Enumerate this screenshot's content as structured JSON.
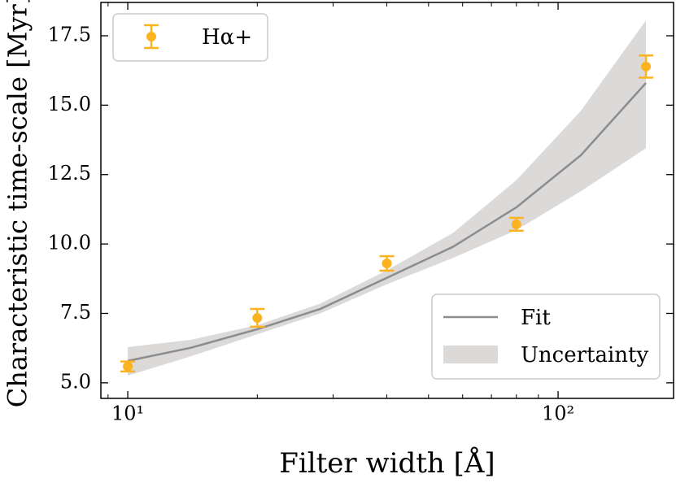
{
  "chart_data": {
    "type": "errorbar",
    "xlabel": "Filter width [Å]",
    "ylabel": "Characteristic time-scale [Myr]",
    "xscale": "log",
    "xlim": [
      8.66,
      185.5
    ],
    "ylim": [
      4.44,
      18.7
    ],
    "xticks": [
      {
        "value": 10,
        "label": "10¹"
      },
      {
        "value": 100,
        "label": "10²"
      }
    ],
    "xminorticks": [
      9,
      20,
      30,
      40,
      50,
      60,
      70,
      80,
      90
    ],
    "yticks": [
      {
        "value": 5,
        "label": "5.0"
      },
      {
        "value": 7.5,
        "label": "7.5"
      },
      {
        "value": 10,
        "label": "10.0"
      },
      {
        "value": 12.5,
        "label": "12.5"
      },
      {
        "value": 15,
        "label": "15.0"
      },
      {
        "value": 17.5,
        "label": "17.5"
      }
    ],
    "series": [
      {
        "name": "Hα+",
        "type": "errorbar",
        "color": "#fbb320",
        "legend": "upper left",
        "x": [
          10,
          20,
          40,
          80,
          160
        ],
        "values": [
          5.59,
          7.34,
          9.3,
          10.71,
          16.39
        ],
        "errors": [
          0.18,
          0.32,
          0.26,
          0.23,
          0.4
        ]
      },
      {
        "name": "Fit",
        "type": "line",
        "color": "#8c8c8c",
        "legend": "lower right",
        "x": [
          10,
          14,
          20,
          28,
          40,
          57,
          80,
          113,
          160
        ],
        "values": [
          5.79,
          6.26,
          6.93,
          7.66,
          8.78,
          9.9,
          11.32,
          13.2,
          15.8
        ]
      },
      {
        "name": "Uncertainty",
        "type": "band",
        "color": "#dcd9d9",
        "legend": "lower right",
        "x": [
          10,
          14,
          20,
          28,
          40,
          57,
          80,
          113,
          160
        ],
        "upper": [
          6.29,
          6.55,
          7.08,
          7.85,
          9.05,
          10.4,
          12.3,
          14.8,
          18.05
        ],
        "lower": [
          5.26,
          5.95,
          6.75,
          7.5,
          8.55,
          9.5,
          10.5,
          11.9,
          13.45
        ]
      }
    ]
  }
}
